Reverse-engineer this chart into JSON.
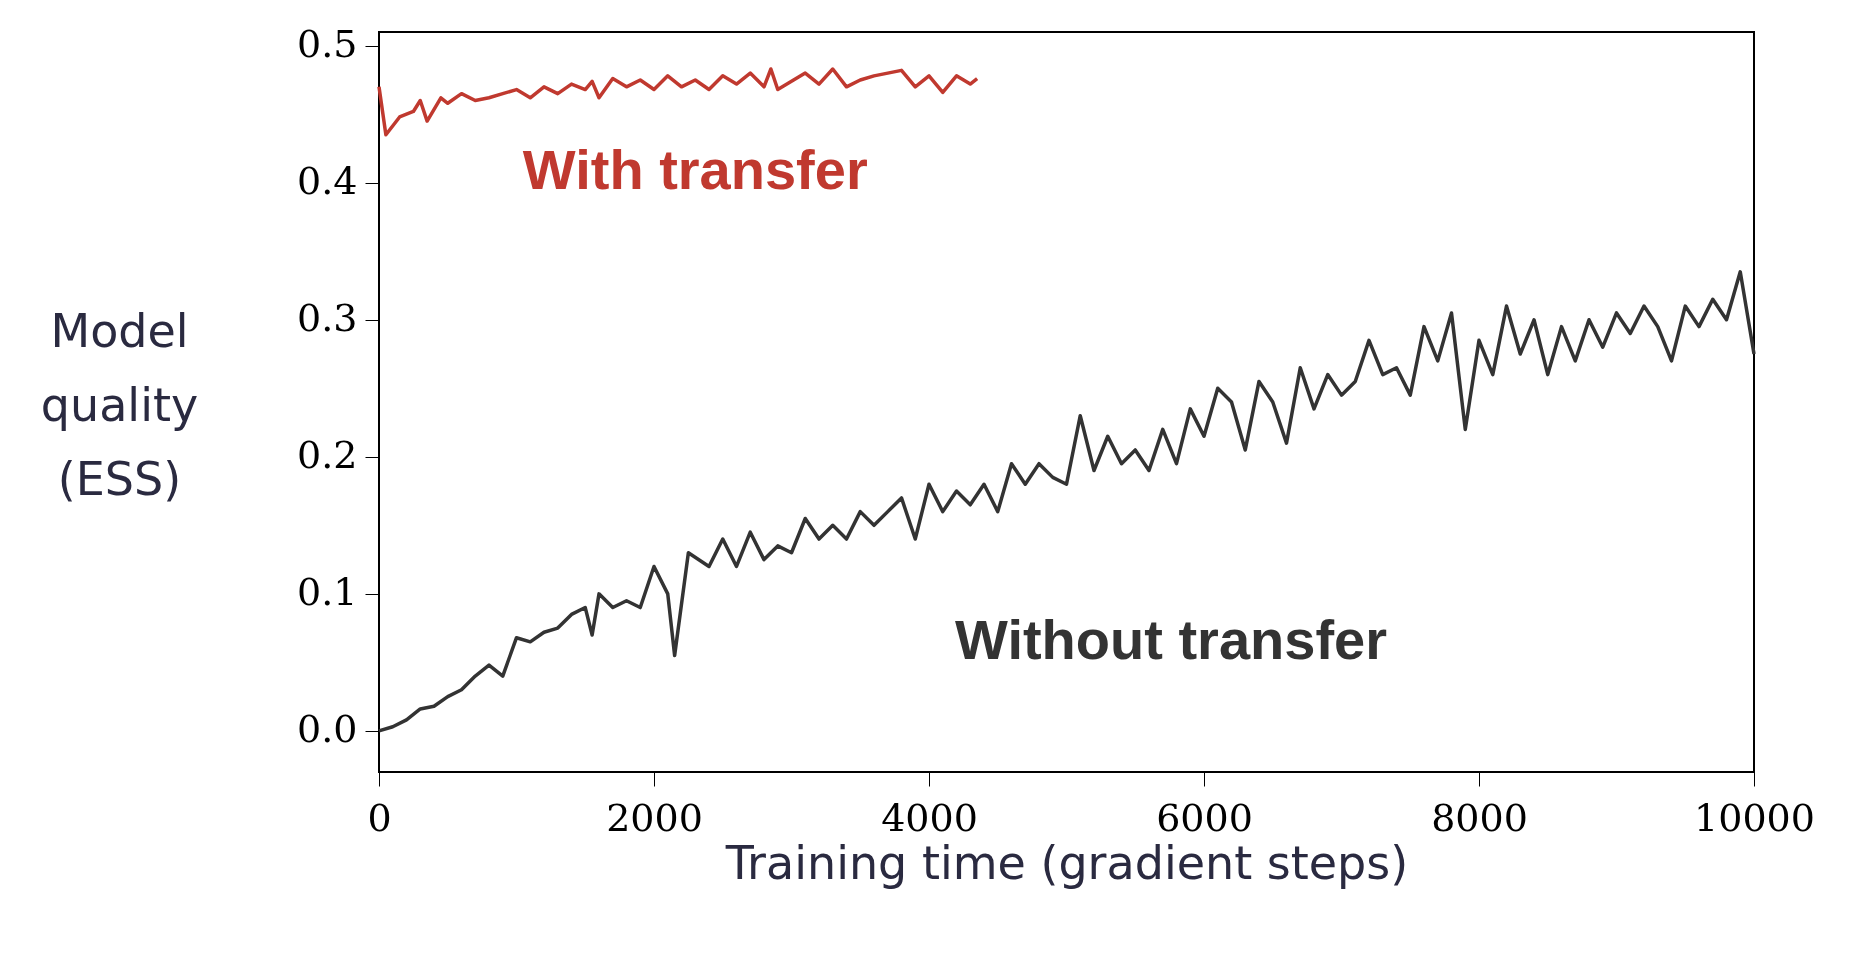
{
  "chart_data": {
    "type": "line",
    "xlabel": "Training time (gradient steps)",
    "ylabel": "Model quality (ESS)",
    "xlim": [
      0,
      10000
    ],
    "ylim": [
      -0.03,
      0.51
    ],
    "xticks": [
      0,
      2000,
      4000,
      6000,
      8000,
      10000
    ],
    "yticks": [
      {
        "value": 0,
        "label": "0.0"
      },
      0.1,
      0.2,
      0.3,
      0.4,
      0.5
    ],
    "grid": false,
    "marker": "none",
    "line_style": "solid",
    "series": [
      {
        "name": "With transfer",
        "color": "#c0392f",
        "x": [
          0,
          50,
          150,
          250,
          300,
          350,
          450,
          500,
          600,
          700,
          800,
          900,
          1000,
          1100,
          1200,
          1300,
          1400,
          1500,
          1550,
          1600,
          1700,
          1800,
          1900,
          2000,
          2100,
          2200,
          2300,
          2400,
          2500,
          2600,
          2700,
          2800,
          2850,
          2900,
          3000,
          3100,
          3200,
          3300,
          3400,
          3500,
          3600,
          3700,
          3800,
          3900,
          4000,
          4100,
          4200,
          4300,
          4350
        ],
        "values": [
          0.47,
          0.435,
          0.448,
          0.452,
          0.46,
          0.445,
          0.462,
          0.458,
          0.465,
          0.46,
          0.462,
          0.465,
          0.468,
          0.462,
          0.47,
          0.465,
          0.472,
          0.468,
          0.474,
          0.462,
          0.476,
          0.47,
          0.475,
          0.468,
          0.478,
          0.47,
          0.475,
          0.468,
          0.478,
          0.472,
          0.48,
          0.47,
          0.483,
          0.468,
          0.474,
          0.48,
          0.472,
          0.483,
          0.47,
          0.475,
          0.478,
          0.48,
          0.482,
          0.47,
          0.478,
          0.466,
          0.478,
          0.472,
          0.476
        ]
      },
      {
        "name": "Without transfer",
        "color": "#333333",
        "x": [
          0,
          100,
          200,
          300,
          400,
          500,
          600,
          700,
          800,
          900,
          1000,
          1100,
          1200,
          1300,
          1400,
          1500,
          1550,
          1600,
          1700,
          1800,
          1900,
          2000,
          2100,
          2150,
          2250,
          2400,
          2500,
          2600,
          2700,
          2800,
          2900,
          3000,
          3100,
          3200,
          3300,
          3400,
          3500,
          3600,
          3700,
          3800,
          3900,
          4000,
          4100,
          4200,
          4300,
          4400,
          4500,
          4600,
          4700,
          4800,
          4900,
          5000,
          5100,
          5200,
          5300,
          5400,
          5500,
          5600,
          5700,
          5800,
          5900,
          6000,
          6100,
          6200,
          6300,
          6400,
          6500,
          6600,
          6700,
          6800,
          6900,
          7000,
          7100,
          7200,
          7300,
          7400,
          7500,
          7600,
          7700,
          7800,
          7900,
          8000,
          8100,
          8200,
          8300,
          8400,
          8500,
          8600,
          8700,
          8800,
          8900,
          9000,
          9100,
          9200,
          9300,
          9400,
          9500,
          9600,
          9700,
          9800,
          9900,
          10000
        ],
        "values": [
          0.0,
          0.003,
          0.008,
          0.016,
          0.018,
          0.025,
          0.03,
          0.04,
          0.048,
          0.04,
          0.068,
          0.065,
          0.072,
          0.075,
          0.085,
          0.09,
          0.07,
          0.1,
          0.09,
          0.095,
          0.09,
          0.12,
          0.1,
          0.055,
          0.13,
          0.12,
          0.14,
          0.12,
          0.145,
          0.125,
          0.135,
          0.13,
          0.155,
          0.14,
          0.15,
          0.14,
          0.16,
          0.15,
          0.16,
          0.17,
          0.14,
          0.18,
          0.16,
          0.175,
          0.165,
          0.18,
          0.16,
          0.195,
          0.18,
          0.195,
          0.185,
          0.18,
          0.23,
          0.19,
          0.215,
          0.195,
          0.205,
          0.19,
          0.22,
          0.195,
          0.235,
          0.215,
          0.25,
          0.24,
          0.205,
          0.255,
          0.24,
          0.21,
          0.265,
          0.235,
          0.26,
          0.245,
          0.255,
          0.285,
          0.26,
          0.265,
          0.245,
          0.295,
          0.27,
          0.305,
          0.22,
          0.285,
          0.26,
          0.31,
          0.275,
          0.3,
          0.26,
          0.295,
          0.27,
          0.3,
          0.28,
          0.305,
          0.29,
          0.31,
          0.295,
          0.27,
          0.31,
          0.295,
          0.315,
          0.3,
          0.335,
          0.275
        ]
      }
    ]
  }
}
